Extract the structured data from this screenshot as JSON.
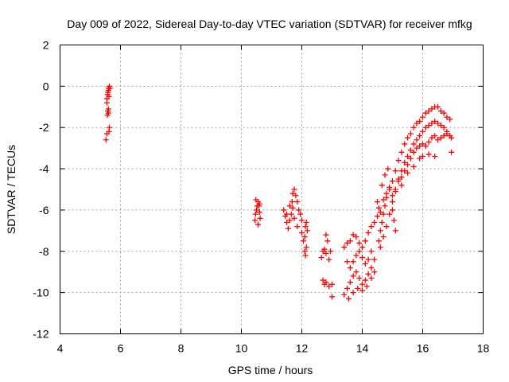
{
  "chart_data": {
    "type": "scatter",
    "title": "Day 009 of 2022, Sidereal Day-to-day VTEC variation (SDTVAR) for receiver mfkg",
    "xlabel": "GPS time / hours",
    "ylabel": "SDTVAR / TECUs",
    "xlim": [
      4,
      18
    ],
    "ylim": [
      -12,
      2
    ],
    "x_ticks": [
      "4",
      "6",
      "8",
      "10",
      "12",
      "14",
      "16",
      "18"
    ],
    "y_ticks": [
      "2",
      "0",
      "-2",
      "-4",
      "-6",
      "-8",
      "-10",
      "-12"
    ],
    "grid": true,
    "marker": "plus",
    "color": "#ff0000",
    "series": [
      {
        "name": "SDTVAR",
        "points": [
          [
            5.52,
            -2.6
          ],
          [
            5.55,
            -2.3
          ],
          [
            5.57,
            -1.4
          ],
          [
            5.58,
            -1.2
          ],
          [
            5.6,
            -1.1
          ],
          [
            5.6,
            -1.3
          ],
          [
            5.62,
            -2.2
          ],
          [
            5.63,
            -2.0
          ],
          [
            5.55,
            -0.6
          ],
          [
            5.57,
            -0.4
          ],
          [
            5.58,
            -0.3
          ],
          [
            5.6,
            -0.2
          ],
          [
            5.61,
            -0.1
          ],
          [
            5.63,
            0.0
          ],
          [
            5.65,
            -0.1
          ],
          [
            5.55,
            -0.8
          ],
          [
            5.62,
            -0.5
          ],
          [
            10.45,
            -6.5
          ],
          [
            10.47,
            -6.2
          ],
          [
            10.5,
            -6.0
          ],
          [
            10.52,
            -5.8
          ],
          [
            10.55,
            -5.6
          ],
          [
            10.58,
            -5.8
          ],
          [
            10.6,
            -6.1
          ],
          [
            10.62,
            -6.4
          ],
          [
            10.55,
            -6.7
          ],
          [
            10.48,
            -5.5
          ],
          [
            10.6,
            -5.7
          ],
          [
            11.4,
            -6.0
          ],
          [
            11.45,
            -6.3
          ],
          [
            11.5,
            -6.6
          ],
          [
            11.55,
            -6.9
          ],
          [
            11.6,
            -6.5
          ],
          [
            11.65,
            -6.2
          ],
          [
            11.68,
            -5.6
          ],
          [
            11.7,
            -5.2
          ],
          [
            11.75,
            -5.0
          ],
          [
            11.8,
            -5.3
          ],
          [
            11.85,
            -5.6
          ],
          [
            11.9,
            -6.0
          ],
          [
            11.95,
            -6.2
          ],
          [
            12.0,
            -6.5
          ],
          [
            11.6,
            -5.8
          ],
          [
            11.75,
            -6.4
          ],
          [
            11.85,
            -6.8
          ],
          [
            11.5,
            -6.2
          ],
          [
            11.7,
            -5.9
          ],
          [
            12.0,
            -7.1
          ],
          [
            12.05,
            -7.5
          ],
          [
            12.1,
            -8.0
          ],
          [
            12.1,
            -7.3
          ],
          [
            12.15,
            -7.8
          ],
          [
            12.12,
            -8.2
          ],
          [
            12.15,
            -6.6
          ],
          [
            12.18,
            -7.0
          ],
          [
            12.12,
            -6.8
          ],
          [
            12.65,
            -8.3
          ],
          [
            12.7,
            -8.0
          ],
          [
            12.75,
            -7.9
          ],
          [
            12.8,
            -8.1
          ],
          [
            12.9,
            -8.4
          ],
          [
            12.95,
            -8.0
          ],
          [
            12.8,
            -7.2
          ],
          [
            12.85,
            -7.5
          ],
          [
            12.75,
            -9.6
          ],
          [
            12.8,
            -9.5
          ],
          [
            12.9,
            -9.7
          ],
          [
            13.0,
            -9.6
          ],
          [
            13.0,
            -10.2
          ],
          [
            12.7,
            -9.4
          ],
          [
            13.4,
            -7.8
          ],
          [
            13.5,
            -7.6
          ],
          [
            13.6,
            -7.5
          ],
          [
            13.7,
            -7.2
          ],
          [
            13.8,
            -7.3
          ],
          [
            13.9,
            -7.6
          ],
          [
            14.0,
            -7.8
          ],
          [
            14.1,
            -7.5
          ],
          [
            14.2,
            -7.1
          ],
          [
            14.3,
            -6.8
          ],
          [
            14.4,
            -6.6
          ],
          [
            14.5,
            -6.3
          ],
          [
            13.5,
            -8.5
          ],
          [
            13.6,
            -8.8
          ],
          [
            13.7,
            -8.5
          ],
          [
            13.8,
            -8.2
          ],
          [
            13.9,
            -8.0
          ],
          [
            14.0,
            -8.3
          ],
          [
            14.1,
            -8.6
          ],
          [
            14.2,
            -8.4
          ],
          [
            14.3,
            -8.0
          ],
          [
            13.4,
            -10.1
          ],
          [
            13.5,
            -9.8
          ],
          [
            13.6,
            -9.5
          ],
          [
            13.7,
            -9.2
          ],
          [
            13.8,
            -9.0
          ],
          [
            13.9,
            -9.3
          ],
          [
            14.0,
            -9.6
          ],
          [
            14.1,
            -9.4
          ],
          [
            14.2,
            -9.1
          ],
          [
            14.3,
            -8.8
          ],
          [
            14.4,
            -8.4
          ],
          [
            13.55,
            -10.3
          ],
          [
            13.7,
            -10.0
          ],
          [
            13.85,
            -9.8
          ],
          [
            14.0,
            -9.9
          ],
          [
            14.15,
            -9.7
          ],
          [
            14.3,
            -9.3
          ],
          [
            14.4,
            -9.0
          ],
          [
            14.55,
            -7.5
          ],
          [
            14.6,
            -7.0
          ],
          [
            14.65,
            -6.6
          ],
          [
            14.7,
            -6.2
          ],
          [
            14.75,
            -5.8
          ],
          [
            14.8,
            -5.4
          ],
          [
            14.9,
            -5.0
          ],
          [
            15.0,
            -4.6
          ],
          [
            15.1,
            -4.1
          ],
          [
            15.2,
            -3.6
          ],
          [
            15.3,
            -3.2
          ],
          [
            15.4,
            -2.8
          ],
          [
            15.5,
            -2.5
          ],
          [
            15.6,
            -2.3
          ],
          [
            15.7,
            -2.0
          ],
          [
            15.8,
            -1.8
          ],
          [
            15.9,
            -1.7
          ],
          [
            16.0,
            -1.5
          ],
          [
            16.1,
            -1.3
          ],
          [
            16.2,
            -1.2
          ],
          [
            16.3,
            -1.1
          ],
          [
            16.4,
            -1.0
          ],
          [
            16.5,
            -1.0
          ],
          [
            16.6,
            -1.2
          ],
          [
            16.7,
            -1.3
          ],
          [
            16.8,
            -1.5
          ],
          [
            16.9,
            -1.6
          ],
          [
            14.6,
            -7.8
          ],
          [
            14.7,
            -7.3
          ],
          [
            14.8,
            -6.8
          ],
          [
            14.9,
            -6.2
          ],
          [
            15.0,
            -5.6
          ],
          [
            15.1,
            -5.1
          ],
          [
            15.2,
            -4.6
          ],
          [
            15.3,
            -4.1
          ],
          [
            15.4,
            -3.7
          ],
          [
            15.5,
            -3.4
          ],
          [
            15.6,
            -3.1
          ],
          [
            15.7,
            -2.8
          ],
          [
            15.8,
            -2.6
          ],
          [
            15.9,
            -2.4
          ],
          [
            16.0,
            -2.2
          ],
          [
            16.1,
            -2.0
          ],
          [
            16.2,
            -1.9
          ],
          [
            16.3,
            -1.8
          ],
          [
            16.4,
            -1.7
          ],
          [
            16.5,
            -1.8
          ],
          [
            16.6,
            -1.9
          ],
          [
            16.7,
            -2.0
          ],
          [
            16.8,
            -2.2
          ],
          [
            16.9,
            -2.4
          ],
          [
            14.7,
            -5.5
          ],
          [
            14.8,
            -5.2
          ],
          [
            14.9,
            -4.9
          ],
          [
            15.0,
            -5.3
          ],
          [
            15.1,
            -5.0
          ],
          [
            15.2,
            -4.5
          ],
          [
            15.3,
            -4.4
          ],
          [
            15.4,
            -4.1
          ],
          [
            15.5,
            -3.8
          ],
          [
            15.6,
            -3.5
          ],
          [
            15.7,
            -3.2
          ],
          [
            15.8,
            -3.0
          ],
          [
            15.9,
            -2.9
          ],
          [
            16.0,
            -2.8
          ],
          [
            16.1,
            -2.9
          ],
          [
            16.2,
            -2.7
          ],
          [
            16.3,
            -2.5
          ],
          [
            16.4,
            -2.4
          ],
          [
            16.5,
            -2.6
          ],
          [
            16.6,
            -2.5
          ],
          [
            16.7,
            -2.4
          ],
          [
            16.8,
            -2.3
          ],
          [
            16.95,
            -2.5
          ],
          [
            14.5,
            -5.6
          ],
          [
            14.55,
            -5.9
          ],
          [
            14.6,
            -6.1
          ],
          [
            14.65,
            -4.8
          ],
          [
            14.75,
            -4.3
          ],
          [
            14.85,
            -4.0
          ],
          [
            15.0,
            -6.0
          ],
          [
            15.05,
            -6.5
          ],
          [
            15.1,
            -7.0
          ],
          [
            15.3,
            -4.8
          ],
          [
            15.5,
            -4.2
          ],
          [
            15.7,
            -3.9
          ],
          [
            15.9,
            -3.5
          ],
          [
            16.0,
            -3.4
          ],
          [
            16.2,
            -3.3
          ],
          [
            16.4,
            -3.4
          ],
          [
            16.95,
            -3.2
          ]
        ]
      }
    ]
  }
}
